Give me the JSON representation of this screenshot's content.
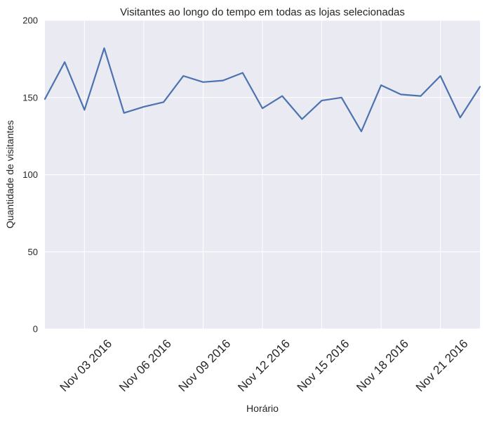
{
  "chart_data": {
    "type": "line",
    "title": "Visitantes ao longo do tempo em todas as lojas selecionadas",
    "xlabel": "Horário",
    "ylabel": "Quantidade de visitantes",
    "ylim": [
      0,
      200
    ],
    "yticks": [
      0,
      50,
      100,
      150,
      200
    ],
    "grid": true,
    "x_day_range": [
      1,
      23
    ],
    "xticks": [
      {
        "day": 3,
        "label": "Nov 03 2016"
      },
      {
        "day": 6,
        "label": "Nov 06 2016"
      },
      {
        "day": 9,
        "label": "Nov 09 2016"
      },
      {
        "day": 12,
        "label": "Nov 12 2016"
      },
      {
        "day": 15,
        "label": "Nov 15 2016"
      },
      {
        "day": 18,
        "label": "Nov 18 2016"
      },
      {
        "day": 21,
        "label": "Nov 21 2016"
      }
    ],
    "series": [
      {
        "name": "Visitantes",
        "color": "#4c72b0",
        "x": [
          1,
          2,
          3,
          4,
          5,
          6,
          7,
          8,
          9,
          10,
          11,
          12,
          13,
          14,
          15,
          16,
          17,
          18,
          19,
          20,
          21,
          22,
          23
        ],
        "values": [
          149,
          173,
          142,
          182,
          140,
          144,
          147,
          164,
          160,
          161,
          166,
          143,
          151,
          136,
          148,
          150,
          128,
          158,
          152,
          151,
          164,
          137,
          157
        ]
      }
    ]
  },
  "colors": {
    "plot_background": "#eaeaf2",
    "grid": "#ffffff",
    "line": "#4c72b0"
  }
}
